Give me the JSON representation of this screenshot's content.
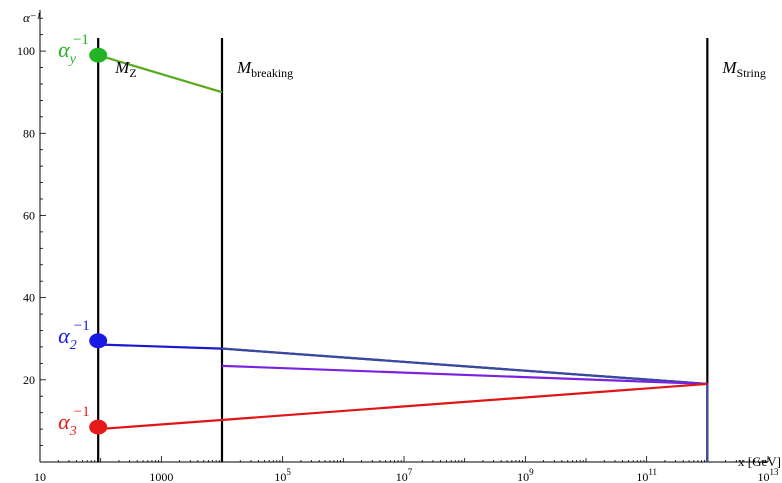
{
  "chart_data": {
    "type": "line",
    "xscale": "log",
    "xlim": [
      10,
      10000000000000.0
    ],
    "ylim": [
      0,
      110
    ],
    "xlabel": "x [GeV]",
    "ylabel": "α⁻¹",
    "xticks": [
      {
        "value": 10,
        "label": "10"
      },
      {
        "value": 1000,
        "label": "1000"
      },
      {
        "value": 100000.0,
        "base": "10",
        "exp": "5"
      },
      {
        "value": 10000000.0,
        "base": "10",
        "exp": "7"
      },
      {
        "value": 1000000000.0,
        "base": "10",
        "exp": "9"
      },
      {
        "value": 100000000000.0,
        "base": "10",
        "exp": "11"
      },
      {
        "value": 10000000000000.0,
        "base": "10",
        "exp": "13"
      }
    ],
    "yticks": [
      20,
      40,
      60,
      80,
      100
    ],
    "vlines": [
      {
        "x": 91,
        "main": "M",
        "sub": "Z",
        "sub_italic": true
      },
      {
        "x": 10000,
        "main": "M",
        "sub": "breaking",
        "sub_italic": false
      },
      {
        "x": 1000000000000.0,
        "main": "M",
        "sub": "String",
        "sub_italic": false
      }
    ],
    "series": [
      {
        "key": "alpha_y",
        "color": "#5aa91e",
        "points": [
          [
            91,
            99
          ],
          [
            10000,
            90
          ]
        ]
      },
      {
        "key": "alpha_2",
        "color": "#1a1acc",
        "points": [
          [
            91,
            28.6
          ],
          [
            10000,
            27.6
          ],
          [
            1000000000000.0,
            19
          ]
        ]
      },
      {
        "key": "alpha_2b",
        "color": "#3a4a9a",
        "points": [
          [
            10000,
            27.6
          ],
          [
            1000000000000.0,
            19
          ],
          [
            1000000000000.0,
            0
          ]
        ]
      },
      {
        "key": "violet",
        "color": "#7a22e0",
        "points": [
          [
            10000,
            23.4
          ],
          [
            1000000000000.0,
            19
          ]
        ]
      },
      {
        "key": "alpha_3",
        "color": "#e01515",
        "points": [
          [
            91,
            8
          ],
          [
            1000000000000.0,
            19
          ]
        ]
      }
    ],
    "markers": [
      {
        "key": "alpha_y",
        "x": 91,
        "y": 99,
        "color": "#22b422",
        "base": "α",
        "sub": "y",
        "sup": "−1"
      },
      {
        "key": "alpha_2",
        "x": 91,
        "y": 29.5,
        "color": "#1a1ae6",
        "base": "α",
        "sub": "2",
        "sup": "−1"
      },
      {
        "key": "alpha_3",
        "x": 91,
        "y": 8.5,
        "color": "#e61a1a",
        "base": "α",
        "sub": "3",
        "sup": "−1"
      }
    ]
  }
}
